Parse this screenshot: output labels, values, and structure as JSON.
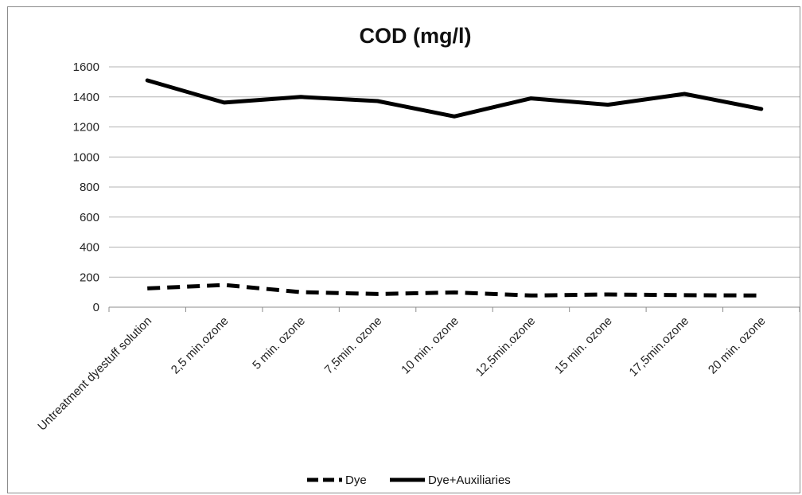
{
  "chart_data": {
    "type": "line",
    "title": "COD (mg/l)",
    "xlabel": "",
    "ylabel": "",
    "categories": [
      "Untreatment dyestuff solution",
      "2,5 min.ozone",
      "5 min. ozone",
      "7,5min. ozone",
      "10 min. ozone",
      "12,5min.ozone",
      "15 min. ozone",
      "17,5min.ozone",
      "20 min. ozone"
    ],
    "series": [
      {
        "name": "Dye",
        "values": [
          125,
          148,
          100,
          88,
          98,
          78,
          85,
          80,
          78
        ],
        "color": "#000000",
        "dash": "dashed"
      },
      {
        "name": "Dye+Auxiliaries",
        "values": [
          1510,
          1362,
          1400,
          1372,
          1270,
          1390,
          1348,
          1420,
          1320
        ],
        "color": "#000000",
        "dash": "solid"
      }
    ],
    "ylim": [
      0,
      1600
    ],
    "yticks": [
      0,
      200,
      400,
      600,
      800,
      1000,
      1200,
      1400,
      1600
    ],
    "grid": true,
    "legend_position": "bottom"
  }
}
